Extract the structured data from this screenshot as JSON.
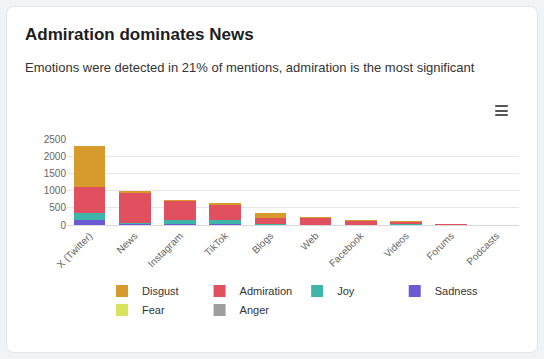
{
  "chart_data": {
    "type": "bar",
    "title": "Admiration dominates News",
    "subtitle": "Emotions were detected in 21% of mentions, admiration is the most significant",
    "stacked": true,
    "grid": true,
    "legend": "bottom",
    "categories": [
      "X (Twitter)",
      "News",
      "Instagram",
      "TikTok",
      "Blogs",
      "Web",
      "Facebook",
      "Videos",
      "Forums",
      "Podcasts"
    ],
    "series": [
      {
        "name": "Disgust",
        "color": "#d69a2d",
        "values": [
          1200,
          40,
          30,
          50,
          140,
          10,
          10,
          10,
          10,
          0
        ]
      },
      {
        "name": "Admiration",
        "color": "#e0505f",
        "values": [
          750,
          870,
          560,
          440,
          170,
          200,
          120,
          70,
          20,
          3
        ]
      },
      {
        "name": "Joy",
        "color": "#3db5aa",
        "values": [
          200,
          40,
          120,
          130,
          20,
          10,
          10,
          30,
          5,
          0
        ]
      },
      {
        "name": "Sadness",
        "color": "#6b5bd2",
        "values": [
          140,
          20,
          10,
          10,
          5,
          0,
          0,
          0,
          0,
          0
        ]
      },
      {
        "name": "Fear",
        "color": "#d9e35c",
        "values": [
          5,
          10,
          10,
          10,
          5,
          0,
          0,
          0,
          5,
          0
        ]
      },
      {
        "name": "Anger",
        "color": "#9e9e9e",
        "values": [
          5,
          0,
          0,
          0,
          0,
          0,
          0,
          0,
          0,
          0
        ]
      }
    ],
    "ylim": [
      0,
      2500
    ],
    "yticks": [
      0,
      500,
      1000,
      1500,
      2000,
      2500
    ]
  }
}
